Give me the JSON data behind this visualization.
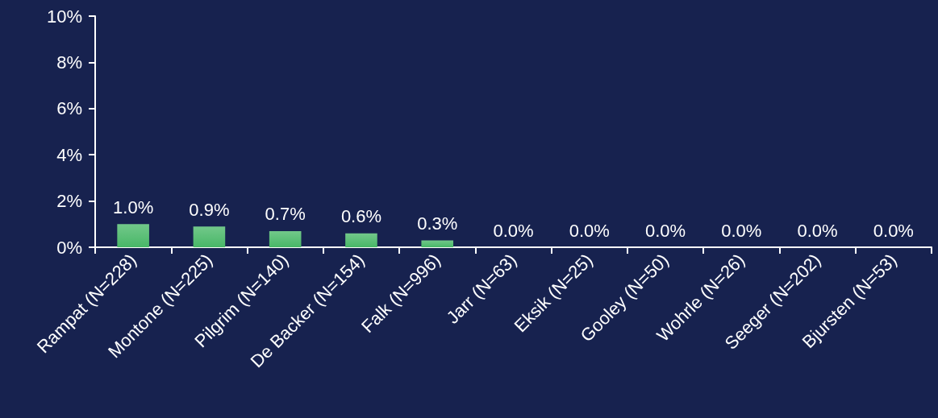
{
  "chart_data": {
    "type": "bar",
    "categories": [
      "Rampat (N=228)",
      "Montone (N=225)",
      "Pilgrim (N=140)",
      "De Backer (N=154)",
      "Falk (N=996)",
      "Jarr (N=63)",
      "Eksik (N=25)",
      "Gooley (N=50)",
      "Wohrle (N=26)",
      "Seeger (N=202)",
      "Bjursten (N=53)"
    ],
    "values": [
      1.0,
      0.9,
      0.7,
      0.6,
      0.3,
      0.0,
      0.0,
      0.0,
      0.0,
      0.0,
      0.0
    ],
    "value_labels": [
      "1.0%",
      "0.9%",
      "0.7%",
      "0.6%",
      "0.3%",
      "0.0%",
      "0.0%",
      "0.0%",
      "0.0%",
      "0.0%",
      "0.0%"
    ],
    "color": "#72c88a",
    "ylim": [
      0,
      10
    ],
    "yticks": [
      {
        "value": 0,
        "label": "0%"
      },
      {
        "value": 2,
        "label": "2%"
      },
      {
        "value": 4,
        "label": "4%"
      },
      {
        "value": 6,
        "label": "6%"
      },
      {
        "value": 8,
        "label": "8%"
      },
      {
        "value": 10,
        "label": "10%"
      }
    ],
    "grid": false
  }
}
